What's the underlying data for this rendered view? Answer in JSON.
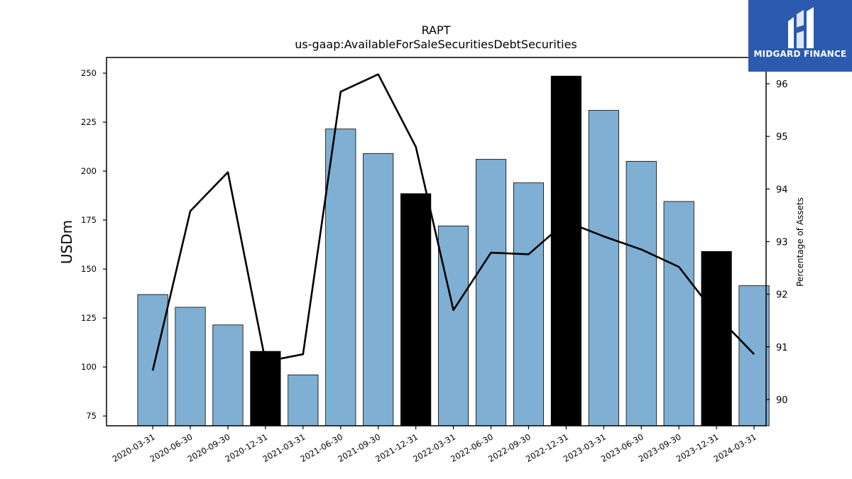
{
  "brand": {
    "name": "MIDGARD FINANCE",
    "bg_color": "#2b5aae"
  },
  "chart_data": {
    "type": "bar",
    "title": "RAPT",
    "subtitle": "us-gaap:AvailableForSaleSecuritiesDebtSecurities",
    "ylabel": "USDm",
    "y2label": "Percentage of Assets",
    "ylim": [
      70,
      258
    ],
    "y2lim": [
      89.5,
      96.5
    ],
    "yticks": [
      75,
      100,
      125,
      150,
      175,
      200,
      225,
      250
    ],
    "y2ticks": [
      90,
      91,
      92,
      93,
      94,
      95,
      96
    ],
    "categories": [
      "2020-03-31",
      "2020-06-30",
      "2020-09-30",
      "2020-12-31",
      "2021-03-31",
      "2021-06-30",
      "2021-09-30",
      "2021-12-31",
      "2022-03-31",
      "2022-06-30",
      "2022-09-30",
      "2022-12-31",
      "2023-03-31",
      "2023-06-30",
      "2023-09-30",
      "2023-12-31",
      "2024-03-31"
    ],
    "series": [
      {
        "type": "bar",
        "axis": "left",
        "values": [
          137,
          130.5,
          121.5,
          108,
          96,
          221.5,
          209,
          188.5,
          172,
          206,
          194,
          248.5,
          231,
          205,
          184.5,
          159,
          141.5
        ],
        "colors": [
          "#7fafd3",
          "#7fafd3",
          "#7fafd3",
          "#000000",
          "#7fafd3",
          "#7fafd3",
          "#7fafd3",
          "#000000",
          "#7fafd3",
          "#7fafd3",
          "#7fafd3",
          "#000000",
          "#7fafd3",
          "#7fafd3",
          "#7fafd3",
          "#000000",
          "#7fafd3"
        ]
      },
      {
        "type": "line",
        "axis": "right",
        "color": "#000000",
        "values": [
          90.55,
          93.58,
          94.32,
          90.72,
          90.86,
          95.85,
          96.18,
          94.8,
          91.7,
          92.79,
          92.76,
          93.38,
          93.1,
          92.85,
          92.52,
          91.6,
          90.86
        ]
      }
    ]
  }
}
